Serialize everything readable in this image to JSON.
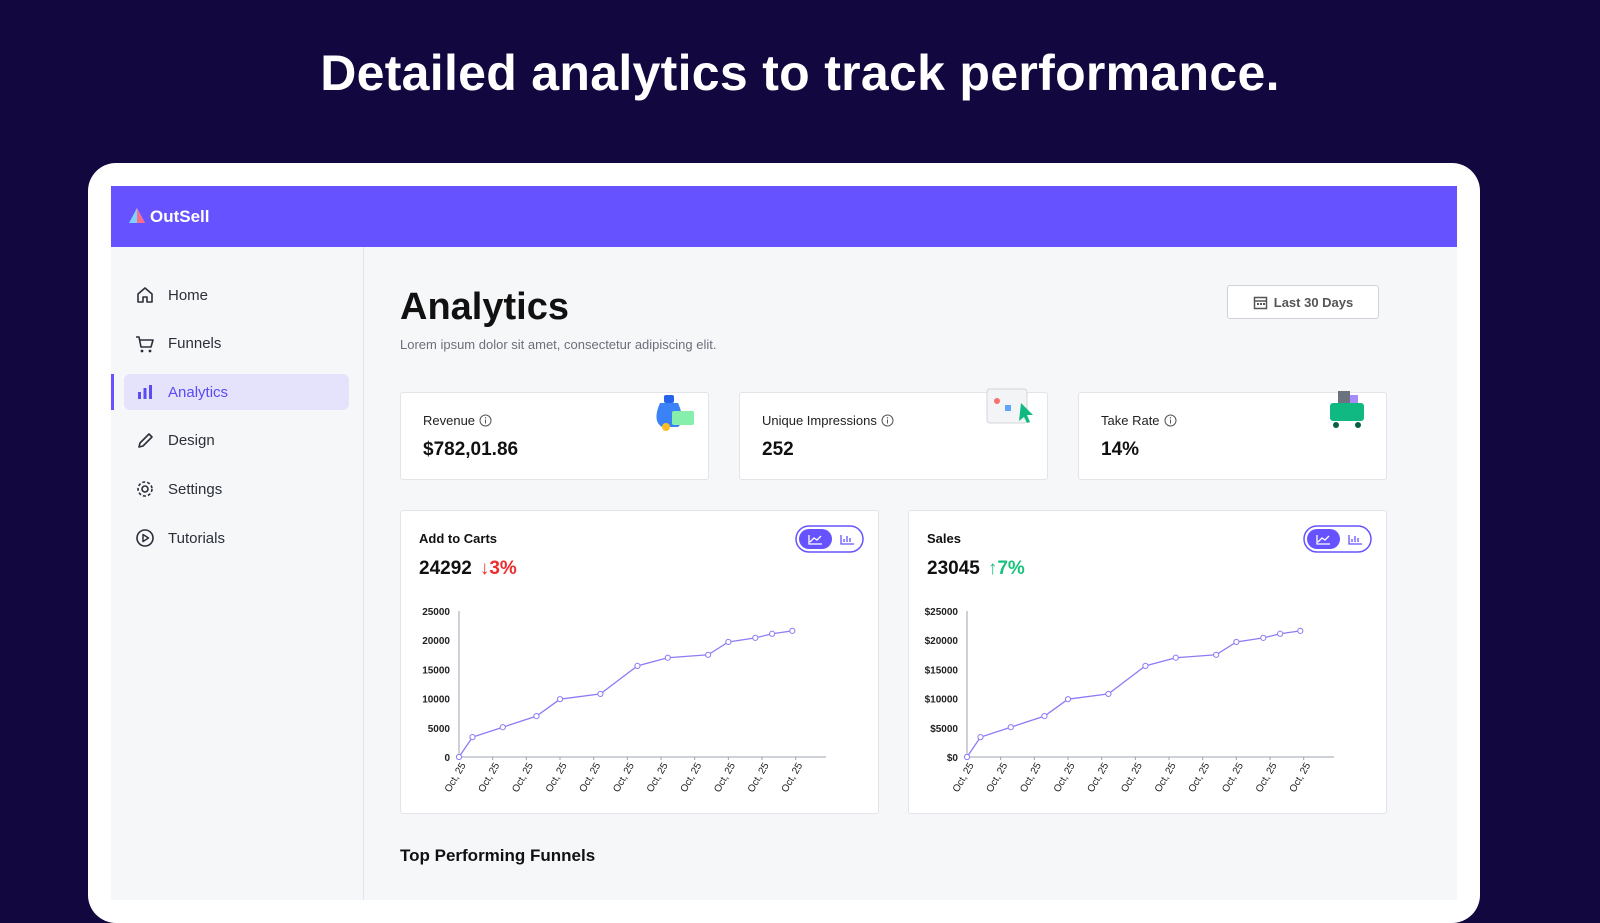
{
  "headline": "Detailed analytics to track performance.",
  "app": {
    "brand": "OutSell",
    "nav": [
      {
        "label": "Home",
        "active": false
      },
      {
        "label": "Funnels",
        "active": false
      },
      {
        "label": "Analytics",
        "active": true
      },
      {
        "label": "Design",
        "active": false
      },
      {
        "label": "Settings",
        "active": false
      },
      {
        "label": "Tutorials",
        "active": false
      }
    ],
    "page_title": "Analytics",
    "subtitle": "Lorem ipsum dolor sit amet, consectetur adipiscing elit.",
    "date_range": "Last 30 Days",
    "stats": [
      {
        "label": "Revenue",
        "value": "$782,01.86"
      },
      {
        "label": "Unique Impressions",
        "value": "252"
      },
      {
        "label": "Take Rate",
        "value": "14%"
      }
    ],
    "section_title": "Top Performing Funnels"
  },
  "chart_data": [
    {
      "type": "line",
      "title": "Add to Carts",
      "total": "24292",
      "change": "↓3%",
      "change_color": "#ef2b2b",
      "color": "#8b7cf6",
      "x": [
        0,
        0.4,
        1.3,
        2.3,
        3.0,
        4.2,
        5.3,
        6.2,
        7.4,
        8.0,
        8.8,
        9.3,
        9.9
      ],
      "values": [
        0,
        3400,
        5100,
        7000,
        9900,
        10800,
        15600,
        17000,
        17500,
        19700,
        20400,
        21100,
        21600
      ],
      "xlim": [
        0,
        10.9
      ],
      "ylim": [
        0,
        25000
      ],
      "yticks": [
        0,
        5000,
        10000,
        15000,
        20000,
        25000
      ],
      "xticks": [
        {
          "value": 0,
          "label": "Oct, 25"
        },
        {
          "value": 1,
          "label": "Oct, 25"
        },
        {
          "value": 2,
          "label": "Oct, 25"
        },
        {
          "value": 3,
          "label": "Oct, 25"
        },
        {
          "value": 4,
          "label": "Oct, 25"
        },
        {
          "value": 5,
          "label": "Oct, 25"
        },
        {
          "value": 6,
          "label": "Oct, 25"
        },
        {
          "value": 7,
          "label": "Oct, 25"
        },
        {
          "value": 8,
          "label": "Oct, 25"
        },
        {
          "value": 9,
          "label": "Oct, 25"
        },
        {
          "value": 10,
          "label": "Oct, 25"
        }
      ]
    },
    {
      "type": "line",
      "title": "Sales",
      "total": "23045",
      "change": "↑7%",
      "change_color": "#19c37d",
      "color": "#8b7cf6",
      "x": [
        0,
        0.4,
        1.3,
        2.3,
        3.0,
        4.2,
        5.3,
        6.2,
        7.4,
        8.0,
        8.8,
        9.3,
        9.9
      ],
      "values": [
        0,
        3400,
        5100,
        7000,
        9900,
        10800,
        15600,
        17000,
        17500,
        19700,
        20400,
        21100,
        21600
      ],
      "xlim": [
        0,
        10.9
      ],
      "ylim": [
        0,
        25000
      ],
      "yticks": [
        {
          "value": 0,
          "label": "$0"
        },
        {
          "value": 5000,
          "label": "$5000"
        },
        {
          "value": 10000,
          "label": "$10000"
        },
        {
          "value": 15000,
          "label": "$15000"
        },
        {
          "value": 20000,
          "label": "$20000"
        },
        {
          "value": 25000,
          "label": "$25000"
        }
      ],
      "xticks": [
        {
          "value": 0,
          "label": "Oct, 25"
        },
        {
          "value": 1,
          "label": "Oct, 25"
        },
        {
          "value": 2,
          "label": "Oct, 25"
        },
        {
          "value": 3,
          "label": "Oct, 25"
        },
        {
          "value": 4,
          "label": "Oct, 25"
        },
        {
          "value": 5,
          "label": "Oct, 25"
        },
        {
          "value": 6,
          "label": "Oct, 25"
        },
        {
          "value": 7,
          "label": "Oct, 25"
        },
        {
          "value": 8,
          "label": "Oct, 25"
        },
        {
          "value": 9,
          "label": "Oct, 25"
        },
        {
          "value": 10,
          "label": "Oct, 25"
        }
      ]
    }
  ]
}
